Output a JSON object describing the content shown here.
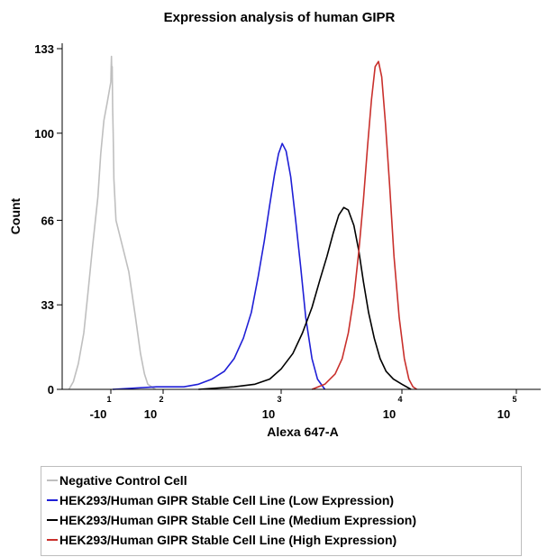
{
  "chart_data": {
    "type": "line",
    "title": "Expression analysis of human GIPR",
    "xlabel": "Alexa 647-A",
    "ylabel": "Count",
    "xscale": "biexponential",
    "xlim": [
      -30,
      300000
    ],
    "ylim": [
      0,
      133
    ],
    "yticks": [
      0,
      33,
      66,
      100,
      133
    ],
    "xticks": [
      {
        "base": "-10",
        "exp": "1",
        "value": -10
      },
      {
        "base": "10",
        "exp": "2",
        "value": 100
      },
      {
        "base": "10",
        "exp": "3",
        "value": 1000
      },
      {
        "base": "10",
        "exp": "4",
        "value": 10000
      },
      {
        "base": "10",
        "exp": "5",
        "value": 100000
      }
    ],
    "grid": false,
    "legend_position": "bottom",
    "series": [
      {
        "name": "Negative Control Cell",
        "color": "#bfbfbf",
        "x": [
          -29,
          -26,
          -23,
          -20,
          -18,
          -16,
          -14,
          -13,
          -12,
          -11,
          -10,
          -9,
          -8,
          -7,
          -6,
          -5,
          -4,
          -3,
          -1,
          2,
          5,
          9,
          14,
          20,
          30,
          45
        ],
        "y": [
          0,
          3,
          10,
          22,
          38,
          56,
          75,
          92,
          105,
          112,
          120,
          125,
          130,
          122,
          126,
          110,
          100,
          82,
          66,
          46,
          28,
          14,
          6,
          2,
          1,
          0
        ]
      },
      {
        "name": "HEK293/Human GIPR Stable Cell Line (Low Expression)",
        "color": "#1f1fd6",
        "x": [
          -5,
          50,
          100,
          150,
          200,
          260,
          330,
          400,
          480,
          560,
          640,
          720,
          800,
          880,
          950,
          1020,
          1100,
          1200,
          1320,
          1450,
          1600,
          1800,
          2000,
          2300
        ],
        "y": [
          0,
          1,
          1,
          1,
          2,
          4,
          7,
          12,
          20,
          30,
          44,
          58,
          72,
          84,
          92,
          96,
          93,
          83,
          66,
          48,
          28,
          12,
          4,
          0
        ]
      },
      {
        "name": "HEK293/Human GIPR Stable Cell Line (Medium Expression)",
        "color": "#000000",
        "x": [
          200,
          400,
          600,
          800,
          1000,
          1250,
          1500,
          1800,
          2100,
          2400,
          2700,
          3000,
          3300,
          3600,
          4000,
          4400,
          4800,
          5300,
          5900,
          6600,
          7400,
          8500,
          10000,
          12000
        ],
        "y": [
          0,
          1,
          2,
          4,
          8,
          14,
          22,
          32,
          43,
          52,
          61,
          68,
          71,
          70,
          64,
          54,
          42,
          30,
          20,
          12,
          7,
          4,
          2,
          0
        ]
      },
      {
        "name": "HEK293/Human GIPR Stable Cell Line (High Expression)",
        "color": "#c9302c",
        "x": [
          1800,
          2300,
          2800,
          3200,
          3600,
          4000,
          4400,
          4800,
          5200,
          5600,
          6000,
          6400,
          6800,
          7300,
          7900,
          8600,
          9500,
          10500,
          11500,
          12500,
          13500
        ],
        "y": [
          0,
          2,
          6,
          12,
          22,
          36,
          54,
          74,
          95,
          113,
          126,
          128,
          122,
          104,
          80,
          52,
          28,
          12,
          4,
          1,
          0
        ]
      }
    ]
  }
}
